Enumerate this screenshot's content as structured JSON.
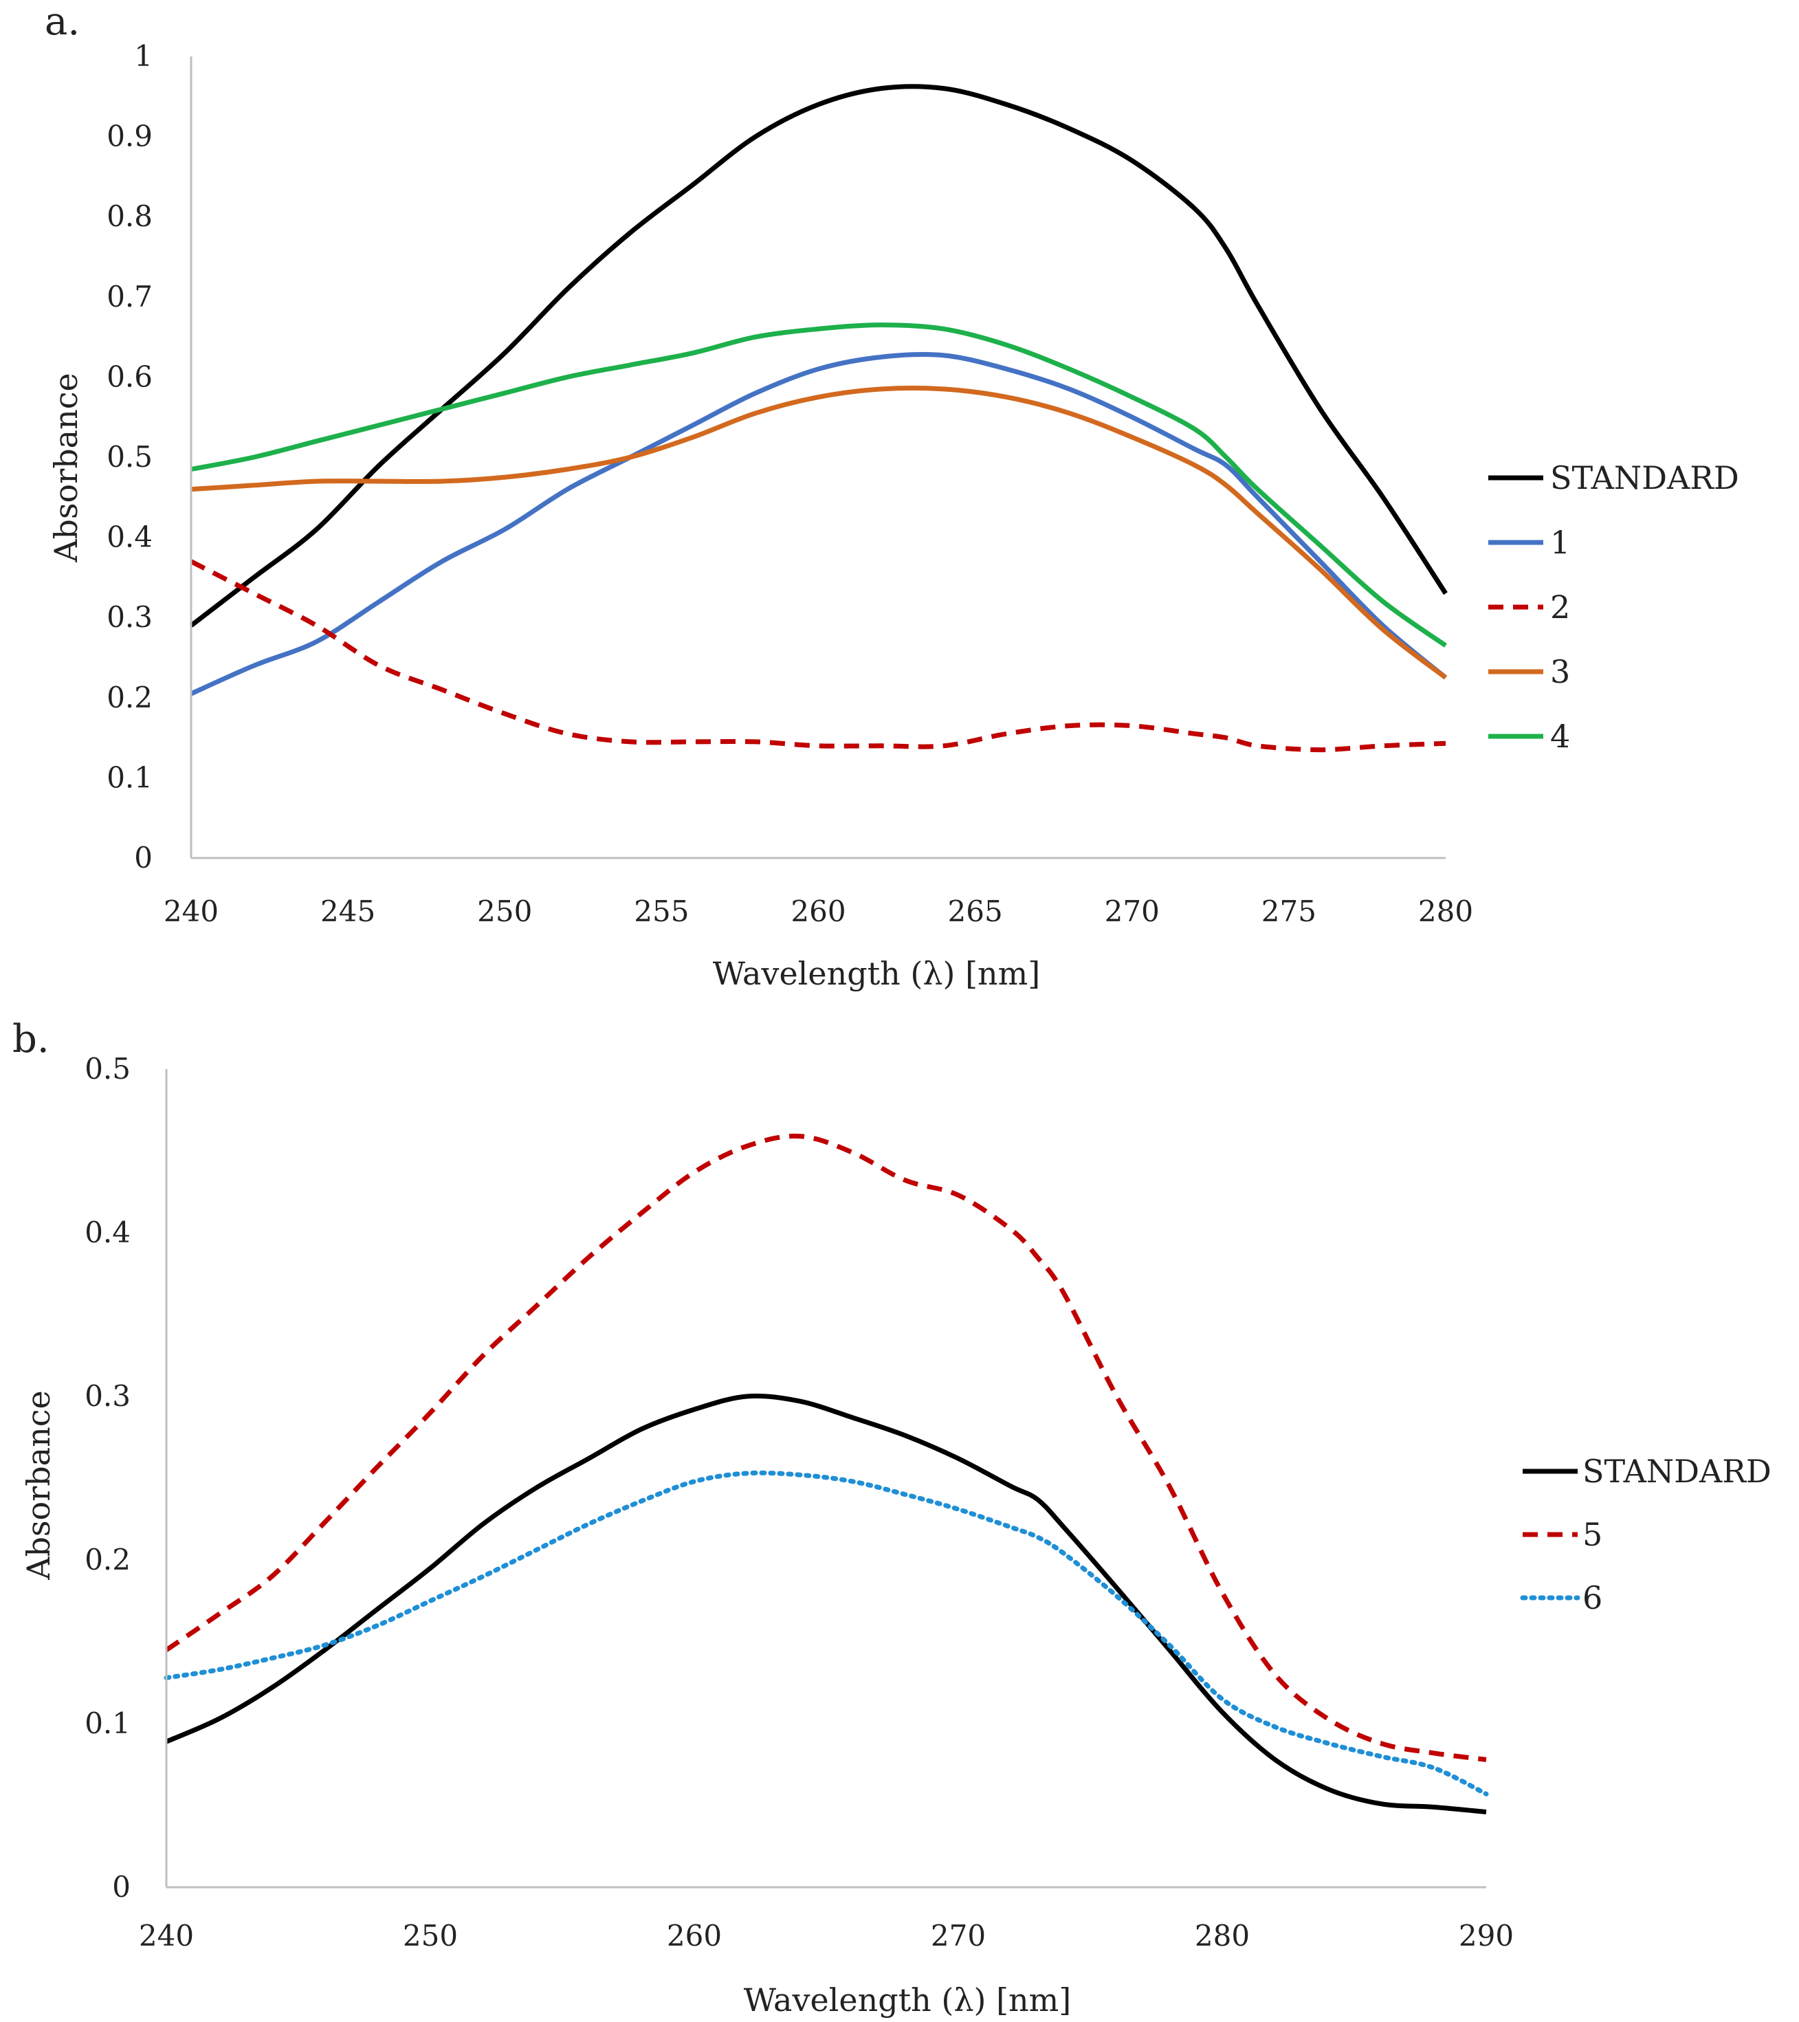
{
  "chart_data": [
    {
      "type": "line",
      "panel_label": "a.",
      "title": "",
      "xlabel": "Wavelength (λ) [nm]",
      "ylabel": "Absorbance",
      "xlim": [
        240,
        280
      ],
      "ylim": [
        0,
        1
      ],
      "x_ticks": [
        240,
        245,
        250,
        255,
        260,
        265,
        270,
        275,
        280
      ],
      "y_ticks": [
        0,
        0.1,
        0.2,
        0.3,
        0.4,
        0.5,
        0.6,
        0.7,
        0.8,
        0.9,
        1
      ],
      "x_tick_labels": [
        "240",
        "245",
        "250",
        "255",
        "260",
        "265",
        "270",
        "275",
        "280"
      ],
      "y_tick_labels": [
        "0",
        "0.1",
        "0.2",
        "0.3",
        "0.4",
        "0.5",
        "0.6",
        "0.7",
        "0.8",
        "0.9",
        "1"
      ],
      "grid": false,
      "legend_position": "right",
      "x": [
        240,
        242,
        244,
        246,
        248,
        250,
        252,
        254,
        256,
        258,
        260,
        262,
        264,
        266,
        268,
        270,
        272,
        273,
        274,
        276,
        278,
        280
      ],
      "series": [
        {
          "name": "STANDARD",
          "color": "#000000",
          "style": "solid",
          "values": [
            0.29,
            0.35,
            0.41,
            0.49,
            0.56,
            0.63,
            0.71,
            0.78,
            0.84,
            0.9,
            0.94,
            0.96,
            0.96,
            0.94,
            0.91,
            0.87,
            0.81,
            0.76,
            0.69,
            0.56,
            0.45,
            0.33
          ]
        },
        {
          "name": "1",
          "color": "#4472C4",
          "style": "solid",
          "values": [
            0.205,
            0.24,
            0.27,
            0.32,
            0.37,
            0.41,
            0.46,
            0.5,
            0.54,
            0.58,
            0.61,
            0.625,
            0.627,
            0.61,
            0.585,
            0.55,
            0.51,
            0.49,
            0.45,
            0.37,
            0.29,
            0.225
          ]
        },
        {
          "name": "2",
          "color": "#C00000",
          "style": "dashed",
          "values": [
            0.37,
            0.33,
            0.29,
            0.24,
            0.21,
            0.18,
            0.155,
            0.145,
            0.145,
            0.145,
            0.14,
            0.14,
            0.14,
            0.155,
            0.165,
            0.165,
            0.155,
            0.15,
            0.14,
            0.135,
            0.14,
            0.143
          ]
        },
        {
          "name": "3",
          "color": "#D2691E",
          "style": "solid",
          "values": [
            0.46,
            0.465,
            0.47,
            0.47,
            0.47,
            0.475,
            0.485,
            0.5,
            0.525,
            0.555,
            0.575,
            0.585,
            0.585,
            0.575,
            0.555,
            0.525,
            0.49,
            0.465,
            0.43,
            0.36,
            0.285,
            0.225
          ]
        },
        {
          "name": "4",
          "color": "#1DB04B",
          "style": "solid",
          "values": [
            0.485,
            0.5,
            0.52,
            0.54,
            0.56,
            0.58,
            0.6,
            0.615,
            0.63,
            0.65,
            0.66,
            0.665,
            0.66,
            0.64,
            0.61,
            0.575,
            0.535,
            0.5,
            0.46,
            0.39,
            0.32,
            0.265
          ]
        }
      ]
    },
    {
      "type": "line",
      "panel_label": "b.",
      "title": "",
      "xlabel": "Wavelength (λ) [nm]",
      "ylabel": "Absorbance",
      "xlim": [
        240,
        290
      ],
      "ylim": [
        0,
        0.5
      ],
      "x_ticks": [
        240,
        250,
        260,
        270,
        280,
        290
      ],
      "y_ticks": [
        0,
        0.1,
        0.2,
        0.3,
        0.4,
        0.5
      ],
      "x_tick_labels": [
        "240",
        "250",
        "260",
        "270",
        "280",
        "290"
      ],
      "y_tick_labels": [
        "0",
        "0.1",
        "0.2",
        "0.3",
        "0.4",
        "0.5"
      ],
      "grid": false,
      "legend_position": "right",
      "x": [
        240,
        242,
        244,
        246,
        248,
        250,
        252,
        254,
        256,
        258,
        260,
        262,
        264,
        266,
        268,
        270,
        272,
        273,
        274,
        276,
        278,
        280,
        282,
        284,
        286,
        288,
        290
      ],
      "series": [
        {
          "name": "STANDARD",
          "color": "#000000",
          "style": "solid",
          "values": [
            0.089,
            0.103,
            0.122,
            0.145,
            0.17,
            0.195,
            0.222,
            0.244,
            0.262,
            0.28,
            0.292,
            0.3,
            0.297,
            0.287,
            0.276,
            0.262,
            0.245,
            0.237,
            0.22,
            0.183,
            0.145,
            0.107,
            0.078,
            0.06,
            0.051,
            0.049,
            0.046
          ]
        },
        {
          "name": "5",
          "color": "#C00000",
          "style": "dashed",
          "values": [
            0.145,
            0.167,
            0.19,
            0.223,
            0.257,
            0.29,
            0.325,
            0.355,
            0.385,
            0.412,
            0.437,
            0.453,
            0.459,
            0.449,
            0.432,
            0.423,
            0.402,
            0.385,
            0.363,
            0.3,
            0.245,
            0.18,
            0.13,
            0.103,
            0.088,
            0.082,
            0.078
          ]
        },
        {
          "name": "6",
          "color": "#1F8FD6",
          "style": "dotted",
          "values": [
            0.128,
            0.133,
            0.14,
            0.148,
            0.16,
            0.175,
            0.19,
            0.206,
            0.222,
            0.236,
            0.248,
            0.253,
            0.252,
            0.248,
            0.24,
            0.231,
            0.22,
            0.214,
            0.204,
            0.178,
            0.148,
            0.115,
            0.098,
            0.088,
            0.08,
            0.073,
            0.057
          ]
        }
      ]
    }
  ]
}
